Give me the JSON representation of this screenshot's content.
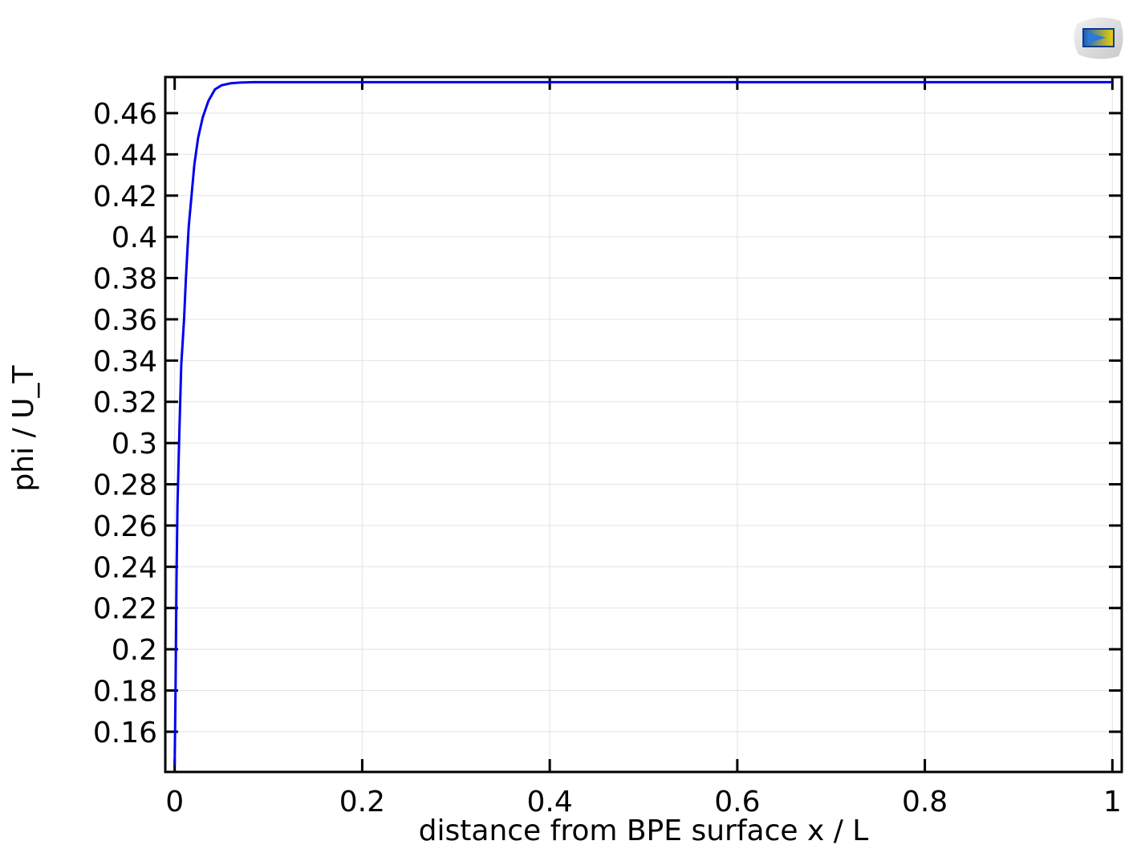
{
  "chart_data": {
    "type": "line",
    "xlabel": "distance from BPE surface x / L",
    "ylabel": "phi / U_T",
    "xlim": [
      -0.01,
      1.01
    ],
    "ylim": [
      0.1405,
      0.4775
    ],
    "x_ticks": [
      0,
      0.2,
      0.4,
      0.6,
      0.8,
      1
    ],
    "x_tick_labels": [
      "0",
      "0.2",
      "0.4",
      "0.6",
      "0.8",
      "1"
    ],
    "y_ticks": [
      0.16,
      0.18,
      0.2,
      0.22,
      0.24,
      0.26,
      0.28,
      0.3,
      0.32,
      0.34,
      0.36,
      0.38,
      0.4,
      0.42,
      0.44,
      0.46
    ],
    "y_tick_labels": [
      "0.16",
      "0.18",
      "0.2",
      "0.22",
      "0.24",
      "0.26",
      "0.28",
      "0.3",
      "0.32",
      "0.34",
      "0.36",
      "0.38",
      "0.4",
      "0.42",
      "0.44",
      "0.46"
    ],
    "grid": true,
    "series": [
      {
        "color": "#0000ee",
        "x": [
          0,
          0.001,
          0.002,
          0.003,
          0.005,
          0.007,
          0.01,
          0.012,
          0.015,
          0.018,
          0.021,
          0.025,
          0.03,
          0.036,
          0.043,
          0.05,
          0.06,
          0.07,
          0.085,
          0.1,
          0.15,
          0.2,
          0.3,
          0.4,
          0.5,
          0.6,
          0.7,
          0.8,
          0.9,
          1.0
        ],
        "y": [
          0.144,
          0.185,
          0.235,
          0.27,
          0.305,
          0.338,
          0.36,
          0.38,
          0.405,
          0.42,
          0.435,
          0.448,
          0.458,
          0.466,
          0.4715,
          0.4735,
          0.4745,
          0.4748,
          0.475,
          0.475,
          0.475,
          0.475,
          0.475,
          0.475,
          0.475,
          0.475,
          0.475,
          0.475,
          0.475,
          0.475
        ]
      }
    ]
  },
  "icons": {
    "logo": "app-logo-icon"
  }
}
